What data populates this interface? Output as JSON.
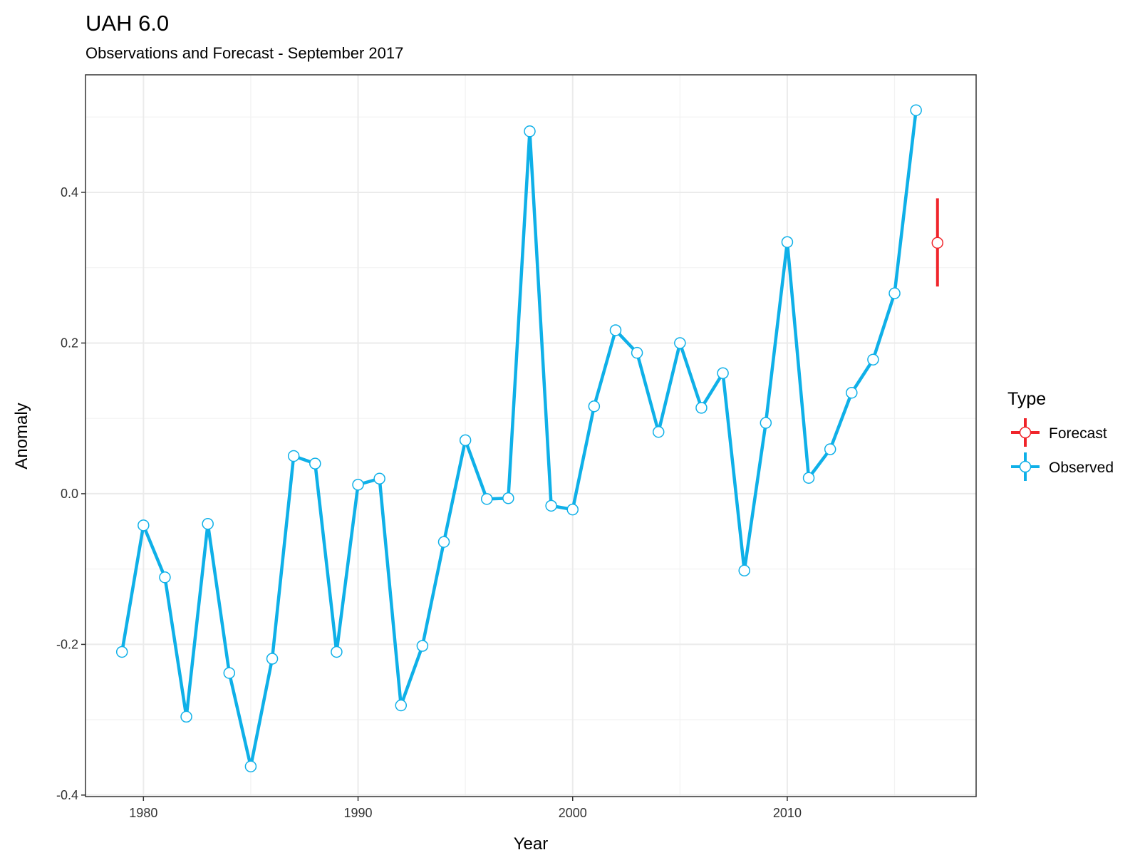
{
  "chart_data": {
    "type": "line",
    "title": "UAH 6.0",
    "subtitle": "Observations and Forecast - September 2017",
    "xlabel": "Year",
    "ylabel": "Anomaly",
    "xlim": [
      1977.3,
      2018.8
    ],
    "ylim": [
      -0.402,
      0.556
    ],
    "x_ticks": [
      1980,
      1990,
      2000,
      2010
    ],
    "x_tick_labels": [
      "1980",
      "1990",
      "2000",
      "2010"
    ],
    "y_ticks": [
      -0.4,
      -0.2,
      0.0,
      0.2,
      0.4
    ],
    "y_tick_labels": [
      "-0.4",
      "-0.2",
      "0.0",
      "0.2",
      "0.4"
    ],
    "grid": true,
    "legend": {
      "title": "Type",
      "position": "right",
      "entries": [
        {
          "label": "Forecast",
          "color": "#f0252b"
        },
        {
          "label": "Observed",
          "color": "#0fb0e8"
        }
      ]
    },
    "series": [
      {
        "name": "Observed",
        "color": "#0fb0e8",
        "x": [
          1979,
          1980,
          1981,
          1982,
          1983,
          1984,
          1985,
          1986,
          1987,
          1988,
          1989,
          1990,
          1991,
          1992,
          1993,
          1994,
          1995,
          1996,
          1997,
          1998,
          1999,
          2000,
          2001,
          2002,
          2003,
          2004,
          2005,
          2006,
          2007,
          2008,
          2009,
          2010,
          2011,
          2012,
          2013,
          2014,
          2015,
          2016
        ],
        "y": [
          -0.21,
          -0.042,
          -0.111,
          -0.296,
          -0.04,
          -0.238,
          -0.362,
          -0.219,
          0.05,
          0.04,
          -0.21,
          0.012,
          0.02,
          -0.281,
          -0.202,
          -0.064,
          0.071,
          -0.007,
          -0.006,
          0.481,
          -0.016,
          -0.021,
          0.116,
          0.217,
          0.187,
          0.082,
          0.2,
          0.114,
          0.16,
          -0.102,
          0.094,
          0.334,
          0.021,
          0.059,
          0.134,
          0.178,
          0.266,
          0.509
        ]
      },
      {
        "name": "Forecast",
        "color": "#f0252b",
        "x": [
          2017
        ],
        "y": [
          0.333
        ],
        "ymin": [
          0.275
        ],
        "ymax": [
          0.392
        ]
      }
    ]
  }
}
